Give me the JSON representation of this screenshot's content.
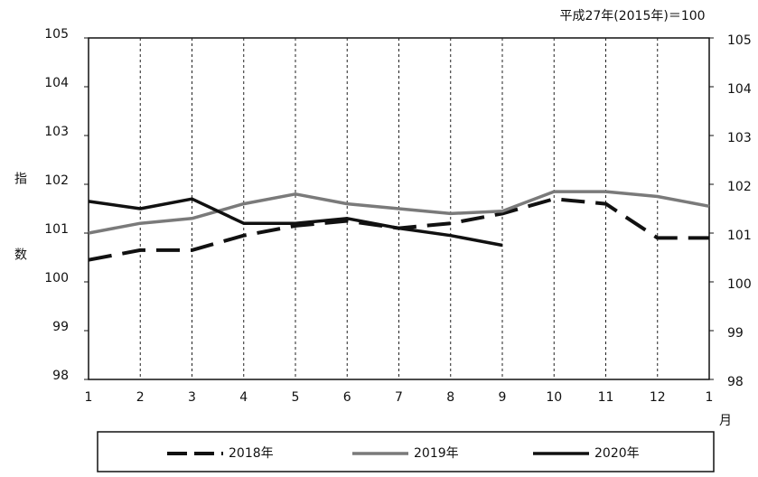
{
  "chart_data": {
    "type": "line",
    "note": "平成27年(2015年)＝100",
    "ylabel": "指数",
    "xlabel": "月",
    "categories": [
      "1",
      "2",
      "3",
      "4",
      "5",
      "6",
      "7",
      "8",
      "9",
      "10",
      "11",
      "12",
      "1"
    ],
    "series": [
      {
        "name": "2018年",
        "color": "#111111",
        "style": "dashed",
        "values": [
          100.45,
          100.65,
          100.65,
          100.95,
          101.15,
          101.25,
          101.1,
          101.2,
          101.4,
          101.7,
          101.6,
          100.9,
          100.9
        ]
      },
      {
        "name": "2019年",
        "color": "#7a7a7a",
        "style": "solid",
        "values": [
          101.0,
          101.2,
          101.3,
          101.6,
          101.8,
          101.6,
          101.5,
          101.4,
          101.45,
          101.85,
          101.85,
          101.75,
          101.55
        ]
      },
      {
        "name": "2020年",
        "color": "#111111",
        "style": "solid",
        "values": [
          101.65,
          101.5,
          101.7,
          101.2,
          101.2,
          101.3,
          101.1,
          100.95,
          100.75,
          null,
          null,
          null,
          null
        ]
      }
    ],
    "ylim": [
      98,
      105
    ],
    "yticks": [
      98,
      99,
      100,
      101,
      102,
      103,
      104,
      105
    ],
    "y2lim": [
      98,
      105
    ],
    "y2ticks": [
      98,
      99,
      100,
      101,
      102,
      103,
      104,
      105
    ],
    "grid": true
  }
}
